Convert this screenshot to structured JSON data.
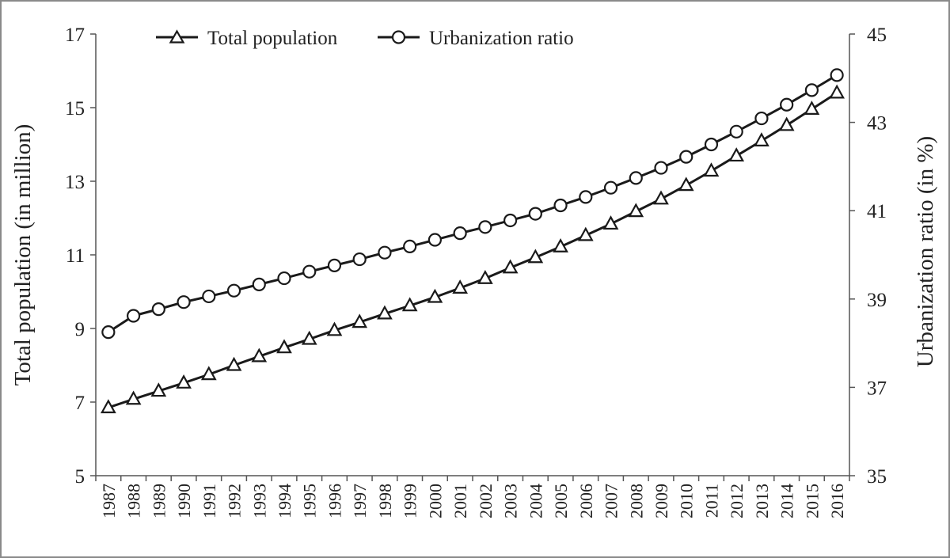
{
  "chart_data": {
    "type": "line",
    "x": [
      "1987",
      "1988",
      "1989",
      "1990",
      "1991",
      "1992",
      "1993",
      "1994",
      "1995",
      "1996",
      "1997",
      "1998",
      "1999",
      "2000",
      "2001",
      "2002",
      "2003",
      "2004",
      "2005",
      "2006",
      "2007",
      "2008",
      "2009",
      "2010",
      "2011",
      "2012",
      "2013",
      "2014",
      "2015",
      "2016"
    ],
    "y_left": {
      "label": "Total population (in million)",
      "ylim": [
        5,
        17
      ],
      "ticks": [
        "5",
        "7",
        "9",
        "11",
        "13",
        "15",
        "17"
      ]
    },
    "y_right": {
      "label": "Urbanization ratio (in %)",
      "ylim": [
        35,
        45
      ],
      "ticks": [
        "35",
        "37",
        "39",
        "41",
        "43",
        "45"
      ]
    },
    "series": [
      {
        "name": "Total population",
        "axis": "left",
        "marker": "triangle",
        "values": [
          6.85,
          7.08,
          7.3,
          7.52,
          7.75,
          8.0,
          8.24,
          8.48,
          8.71,
          8.95,
          9.17,
          9.4,
          9.62,
          9.85,
          10.1,
          10.36,
          10.65,
          10.93,
          11.22,
          11.53,
          11.84,
          12.18,
          12.52,
          12.89,
          13.28,
          13.69,
          14.1,
          14.52,
          14.96,
          15.4
        ]
      },
      {
        "name": "Urbanization ratio",
        "axis": "right",
        "marker": "circle",
        "values": [
          38.25,
          38.62,
          38.77,
          38.93,
          39.06,
          39.19,
          39.33,
          39.47,
          39.62,
          39.76,
          39.9,
          40.05,
          40.19,
          40.34,
          40.49,
          40.63,
          40.78,
          40.93,
          41.12,
          41.31,
          41.52,
          41.74,
          41.97,
          42.22,
          42.5,
          42.79,
          43.09,
          43.4,
          43.73,
          44.07
        ]
      }
    ],
    "legend": "top",
    "grid": false
  }
}
